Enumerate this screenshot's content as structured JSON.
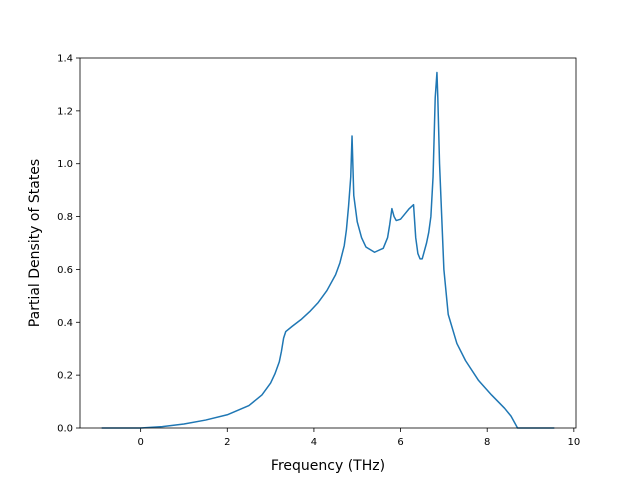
{
  "chart_data": {
    "type": "line",
    "title": "",
    "xlabel": "Frequency (THz)",
    "ylabel": "Partial Density of States",
    "xlim": [
      -1.4,
      10.05
    ],
    "ylim": [
      0.0,
      1.4
    ],
    "xticks": [
      0,
      2,
      4,
      6,
      8,
      10
    ],
    "xtick_labels": [
      "0",
      "2",
      "4",
      "6",
      "8",
      "10"
    ],
    "yticks": [
      0.0,
      0.2,
      0.4,
      0.6,
      0.8,
      1.0,
      1.2,
      1.4
    ],
    "ytick_labels": [
      "0.0",
      "0.2",
      "0.4",
      "0.6",
      "0.8",
      "1.0",
      "1.2",
      "1.4"
    ],
    "grid": false,
    "line_color": "#1f77b4",
    "series": [
      {
        "x": [
          -0.9,
          0.0,
          0.5,
          1.0,
          1.5,
          2.0,
          2.5,
          2.8,
          3.0,
          3.1,
          3.2,
          3.25,
          3.3,
          3.35,
          3.5,
          3.7,
          3.9,
          4.1,
          4.3,
          4.5,
          4.6,
          4.7,
          4.75,
          4.8,
          4.85,
          4.88,
          4.92,
          5.0,
          5.1,
          5.2,
          5.4,
          5.6,
          5.7,
          5.75,
          5.8,
          5.85,
          5.9,
          6.0,
          6.1,
          6.2,
          6.3,
          6.35,
          6.4,
          6.45,
          6.5,
          6.6,
          6.65,
          6.7,
          6.75,
          6.8,
          6.84,
          6.86,
          6.9,
          6.95,
          7.0,
          7.1,
          7.3,
          7.5,
          7.8,
          8.1,
          8.4,
          8.55,
          8.65,
          8.7,
          8.75,
          9.55
        ],
        "y": [
          0.0,
          0.0,
          0.005,
          0.015,
          0.03,
          0.05,
          0.085,
          0.125,
          0.17,
          0.205,
          0.25,
          0.29,
          0.34,
          0.365,
          0.385,
          0.41,
          0.44,
          0.475,
          0.52,
          0.58,
          0.625,
          0.69,
          0.75,
          0.84,
          0.95,
          1.105,
          0.88,
          0.78,
          0.72,
          0.685,
          0.665,
          0.68,
          0.72,
          0.77,
          0.83,
          0.8,
          0.785,
          0.79,
          0.81,
          0.83,
          0.845,
          0.72,
          0.66,
          0.64,
          0.64,
          0.7,
          0.74,
          0.8,
          0.95,
          1.25,
          1.345,
          1.25,
          1.0,
          0.8,
          0.6,
          0.43,
          0.32,
          0.255,
          0.18,
          0.125,
          0.075,
          0.045,
          0.015,
          0.0,
          0.0,
          0.0
        ]
      }
    ]
  }
}
